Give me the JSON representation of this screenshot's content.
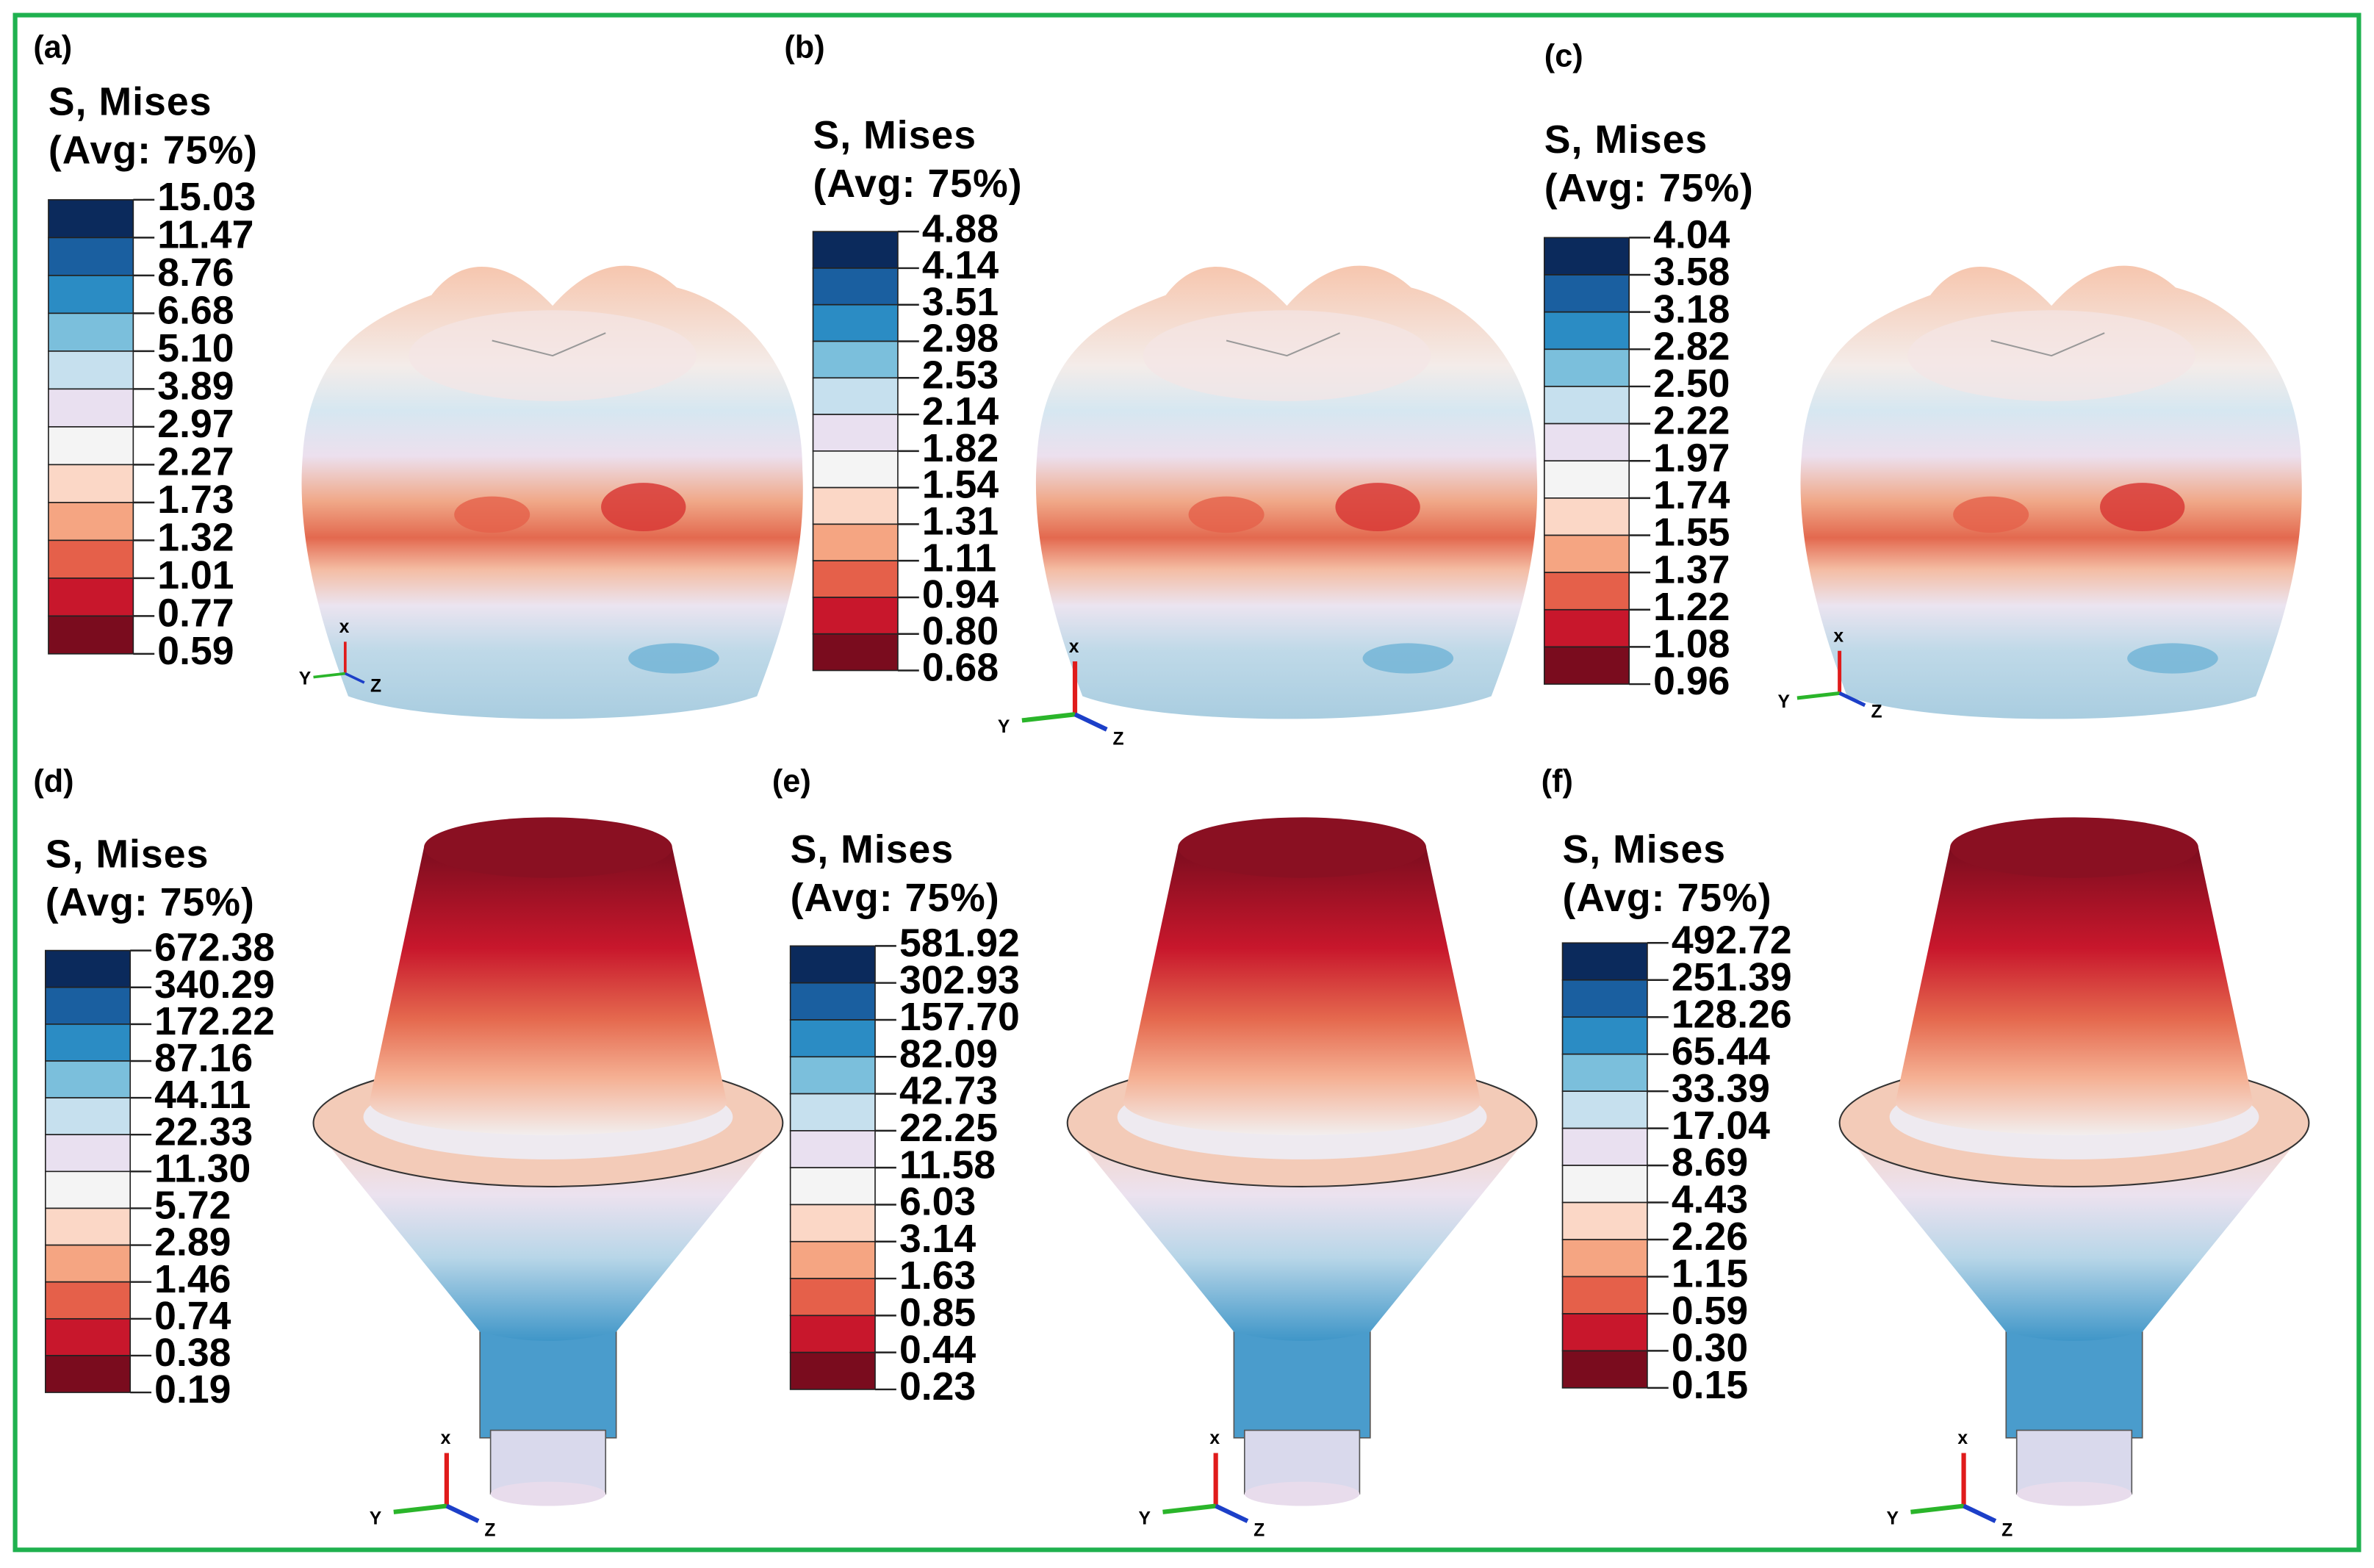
{
  "panels": [
    {
      "label": "(a)",
      "legend": {
        "title": "S, Mises",
        "subtitle": "(Avg: 75%)",
        "levels": [
          "15.03",
          "11.47",
          "8.76",
          "6.68",
          "5.10",
          "3.89",
          "2.97",
          "2.27",
          "1.73",
          "1.32",
          "1.01",
          "0.77",
          "0.59"
        ]
      },
      "triad": {
        "x": "x",
        "y": "Y",
        "z": "Z"
      }
    },
    {
      "label": "(b)",
      "legend": {
        "title": "S, Mises",
        "subtitle": "(Avg: 75%)",
        "levels": [
          "4.88",
          "4.14",
          "3.51",
          "2.98",
          "2.53",
          "2.14",
          "1.82",
          "1.54",
          "1.31",
          "1.11",
          "0.94",
          "0.80",
          "0.68"
        ]
      },
      "triad": {
        "x": "x",
        "y": "Y",
        "z": "Z"
      }
    },
    {
      "label": "(c)",
      "legend": {
        "title": "S, Mises",
        "subtitle": "(Avg: 75%)",
        "levels": [
          "4.04",
          "3.58",
          "3.18",
          "2.82",
          "2.50",
          "2.22",
          "1.97",
          "1.74",
          "1.55",
          "1.37",
          "1.22",
          "1.08",
          "0.96"
        ]
      },
      "triad": {
        "x": "x",
        "y": "Y",
        "z": "Z"
      }
    },
    {
      "label": "(d)",
      "legend": {
        "title": "S, Mises",
        "subtitle": "(Avg: 75%)",
        "levels": [
          "672.38",
          "340.29",
          "172.22",
          "87.16",
          "44.11",
          "22.33",
          "11.30",
          "5.72",
          "2.89",
          "1.46",
          "0.74",
          "0.38",
          "0.19"
        ]
      },
      "triad": {
        "x": "x",
        "y": "Y",
        "z": "Z"
      }
    },
    {
      "label": "(e)",
      "legend": {
        "title": "S, Mises",
        "subtitle": "(Avg: 75%)",
        "levels": [
          "581.92",
          "302.93",
          "157.70",
          "82.09",
          "42.73",
          "22.25",
          "11.58",
          "6.03",
          "3.14",
          "1.63",
          "0.85",
          "0.44",
          "0.23"
        ]
      },
      "triad": {
        "x": "x",
        "y": "Y",
        "z": "Z"
      }
    },
    {
      "label": "(f)",
      "legend": {
        "title": "S, Mises",
        "subtitle": "(Avg: 75%)",
        "levels": [
          "492.72",
          "251.39",
          "128.26",
          "65.44",
          "33.39",
          "17.04",
          "8.69",
          "4.43",
          "2.26",
          "1.15",
          "0.59",
          "0.30",
          "0.15"
        ]
      },
      "triad": {
        "x": "x",
        "y": "Y",
        "z": "Z"
      }
    }
  ]
}
